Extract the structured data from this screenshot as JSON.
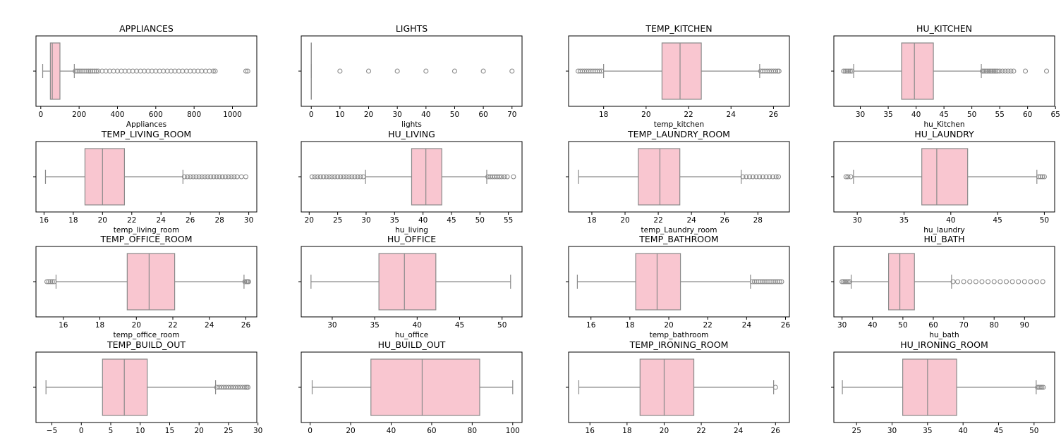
{
  "style": {
    "box_fill": "#f9c6d0",
    "line_color": "#8a8a8a",
    "flier_color": "#8a8a8a"
  },
  "chart_data": [
    {
      "type": "boxplot",
      "title": "APPLIANCES",
      "xlabel": "Appliances",
      "xlim": [
        -25,
        1127
      ],
      "xticks": [
        0,
        200,
        400,
        600,
        800,
        1000
      ],
      "whisker_low": 10,
      "q1": 50,
      "median": 60,
      "q3": 100,
      "whisker_high": 175,
      "outliers": [
        180,
        190,
        200,
        210,
        220,
        230,
        240,
        250,
        260,
        270,
        280,
        290,
        300,
        320,
        340,
        360,
        380,
        400,
        420,
        440,
        460,
        480,
        500,
        520,
        540,
        560,
        580,
        600,
        620,
        640,
        660,
        680,
        700,
        720,
        740,
        760,
        780,
        800,
        820,
        840,
        860,
        880,
        900,
        910,
        1070,
        1080
      ]
    },
    {
      "type": "boxplot",
      "title": "LIGHTS",
      "xlabel": "lights",
      "xlim": [
        -3.5,
        73.5
      ],
      "xticks": [
        0,
        10,
        20,
        30,
        40,
        50,
        60,
        70
      ],
      "whisker_low": 0,
      "q1": 0,
      "median": 0,
      "q3": 0,
      "whisker_high": 0,
      "outliers": [
        10,
        20,
        30,
        40,
        50,
        60,
        70
      ]
    },
    {
      "type": "boxplot",
      "title": "TEMP_KITCHEN",
      "xlabel": "temp_kitchen",
      "xlim": [
        16.35,
        26.75
      ],
      "xticks": [
        18,
        20,
        22,
        24,
        26
      ],
      "whisker_low": 18.0,
      "q1": 20.75,
      "median": 21.6,
      "q3": 22.6,
      "whisker_high": 25.35,
      "outliers": [
        16.8,
        16.9,
        17.0,
        17.1,
        17.2,
        17.3,
        17.4,
        17.5,
        17.6,
        17.7,
        17.8,
        17.9,
        25.4,
        25.5,
        25.6,
        25.7,
        25.8,
        25.9,
        26.0,
        26.1,
        26.2,
        26.26
      ]
    },
    {
      "type": "boxplot",
      "title": "HU_KITCHEN",
      "xlabel": "hu_Kitchen",
      "xlim": [
        25.25,
        64.85
      ],
      "xticks": [
        30,
        35,
        40,
        45,
        50,
        55,
        60,
        65
      ],
      "whisker_low": 28.8,
      "q1": 37.4,
      "median": 39.7,
      "q3": 43.1,
      "whisker_high": 51.7,
      "outliers": [
        27.0,
        27.3,
        27.6,
        27.9,
        28.2,
        28.5,
        51.9,
        52.2,
        52.5,
        52.8,
        53.1,
        53.4,
        53.7,
        54.0,
        54.3,
        54.6,
        55.0,
        55.5,
        56.0,
        56.5,
        57.0,
        57.5,
        59.6,
        63.4
      ]
    },
    {
      "type": "boxplot",
      "title": "TEMP_LIVING_ROOM",
      "xlabel": "temp_living_room",
      "xlim": [
        15.45,
        30.55
      ],
      "xticks": [
        16,
        18,
        20,
        22,
        24,
        26,
        28,
        30
      ],
      "whisker_low": 16.1,
      "q1": 18.8,
      "median": 20.0,
      "q3": 21.5,
      "whisker_high": 25.5,
      "outliers": [
        25.6,
        25.8,
        26.0,
        26.2,
        26.4,
        26.6,
        26.8,
        27.0,
        27.2,
        27.4,
        27.6,
        27.8,
        28.0,
        28.2,
        28.4,
        28.6,
        28.8,
        29.0,
        29.2,
        29.5,
        29.8
      ]
    },
    {
      "type": "boxplot",
      "title": "HU_LIVING",
      "xlabel": "hu_living",
      "xlim": [
        18.6,
        57.4
      ],
      "xticks": [
        20,
        25,
        30,
        35,
        40,
        45,
        50,
        55
      ],
      "whisker_low": 29.9,
      "q1": 38.0,
      "median": 40.5,
      "q3": 43.3,
      "whisker_high": 51.2,
      "outliers": [
        20.5,
        21.0,
        21.5,
        22.0,
        22.5,
        23.0,
        23.5,
        24.0,
        24.5,
        25.0,
        25.5,
        26.0,
        26.5,
        27.0,
        27.5,
        28.0,
        28.5,
        29.0,
        29.5,
        51.4,
        51.8,
        52.2,
        52.6,
        53.0,
        53.4,
        53.8,
        54.3,
        54.8,
        55.9
      ]
    },
    {
      "type": "boxplot",
      "title": "TEMP_LAUNDRY_ROOM",
      "xlabel": "temp_Laundry_room",
      "xlim": [
        16.6,
        29.9
      ],
      "xticks": [
        18,
        20,
        22,
        24,
        26,
        28
      ],
      "whisker_low": 17.2,
      "q1": 20.8,
      "median": 22.1,
      "q3": 23.3,
      "whisker_high": 27.0,
      "outliers": [
        27.1,
        27.3,
        27.5,
        27.7,
        27.9,
        28.1,
        28.3,
        28.5,
        28.7,
        28.9,
        29.1,
        29.24
      ]
    },
    {
      "type": "boxplot",
      "title": "HU_LAUNDRY",
      "xlabel": "hu_laundry",
      "xlim": [
        27.5,
        51.1
      ],
      "xticks": [
        30,
        35,
        40,
        45,
        50
      ],
      "whisker_low": 29.6,
      "q1": 36.9,
      "median": 38.5,
      "q3": 41.8,
      "whisker_high": 49.2,
      "outliers": [
        28.8,
        29.0,
        29.3,
        49.4,
        49.6,
        49.8,
        50.0
      ]
    },
    {
      "type": "boxplot",
      "title": "TEMP_OFFICE_ROOM",
      "xlabel": "temp_office_room",
      "xlim": [
        14.5,
        26.6
      ],
      "xticks": [
        16,
        18,
        20,
        22,
        24,
        26
      ],
      "whisker_low": 15.6,
      "q1": 19.5,
      "median": 20.7,
      "q3": 22.1,
      "whisker_high": 25.9,
      "outliers": [
        15.1,
        15.2,
        15.3,
        15.4,
        15.5,
        25.95,
        26.05,
        26.1,
        26.15
      ]
    },
    {
      "type": "boxplot",
      "title": "HU_OFFICE",
      "xlabel": "hu_office",
      "xlim": [
        26.35,
        52.35
      ],
      "xticks": [
        30,
        35,
        40,
        45,
        50
      ],
      "whisker_low": 27.5,
      "q1": 35.5,
      "median": 38.5,
      "q3": 42.2,
      "whisker_high": 51.0,
      "outliers": []
    },
    {
      "type": "boxplot",
      "title": "TEMP_BATHROOM",
      "xlabel": "temp_bathroom",
      "xlim": [
        14.85,
        26.2
      ],
      "xticks": [
        16,
        18,
        20,
        22,
        24,
        26
      ],
      "whisker_low": 15.3,
      "q1": 18.3,
      "median": 19.4,
      "q3": 20.6,
      "whisker_high": 24.2,
      "outliers": [
        24.3,
        24.4,
        24.5,
        24.6,
        24.7,
        24.8,
        24.9,
        25.0,
        25.1,
        25.2,
        25.3,
        25.4,
        25.5,
        25.6,
        25.7,
        25.8
      ]
    },
    {
      "type": "boxplot",
      "title": "HU_BATH",
      "xlabel": "hu_bath",
      "xlim": [
        27.3,
        99.9
      ],
      "xticks": [
        30,
        40,
        50,
        60,
        70,
        80,
        90
      ],
      "whisker_low": 33.0,
      "q1": 45.3,
      "median": 49.0,
      "q3": 53.8,
      "whisker_high": 66.0,
      "outliers": [
        30.0,
        30.5,
        31.0,
        31.5,
        32.0,
        32.5,
        66.5,
        68,
        70,
        72,
        74,
        76,
        78,
        80,
        82,
        84,
        86,
        88,
        90,
        92,
        94,
        96
      ]
    },
    {
      "type": "boxplot",
      "title": "TEMP_BUILD_OUT",
      "xlabel": "",
      "xlim": [
        -7.7,
        29.8
      ],
      "xticks": [
        -5,
        0,
        5,
        10,
        15,
        20,
        25,
        30
      ],
      "whisker_low": -6.0,
      "q1": 3.6,
      "median": 7.3,
      "q3": 11.2,
      "whisker_high": 22.8,
      "outliers": [
        23.0,
        23.4,
        23.8,
        24.2,
        24.6,
        25.0,
        25.4,
        25.8,
        26.2,
        26.6,
        27.0,
        27.4,
        27.8,
        28.1,
        28.3
      ]
    },
    {
      "type": "boxplot",
      "title": "HU_BUILD_OUT",
      "xlabel": "",
      "xlim": [
        -4.4,
        104.6
      ],
      "xticks": [
        0,
        20,
        40,
        60,
        80,
        100
      ],
      "whisker_low": 1.0,
      "q1": 30.0,
      "median": 55.3,
      "q3": 83.7,
      "whisker_high": 100.0,
      "outliers": []
    },
    {
      "type": "boxplot",
      "title": "TEMP_IRONING_ROOM",
      "xlabel": "",
      "xlim": [
        14.85,
        26.75
      ],
      "xticks": [
        16,
        18,
        20,
        22,
        24,
        26
      ],
      "whisker_low": 15.4,
      "q1": 18.7,
      "median": 20.0,
      "q3": 21.6,
      "whisker_high": 25.9,
      "outliers": [
        26.0
      ]
    },
    {
      "type": "boxplot",
      "title": "HU_IRONING_ROOM",
      "xlabel": "",
      "xlim": [
        21.8,
        52.9
      ],
      "xticks": [
        25,
        30,
        35,
        40,
        45,
        50
      ],
      "whisker_low": 23.0,
      "q1": 31.5,
      "median": 35.0,
      "q3": 39.1,
      "whisker_high": 50.3,
      "outliers": [
        50.5,
        50.7,
        50.9,
        51.1,
        51.3
      ]
    }
  ]
}
